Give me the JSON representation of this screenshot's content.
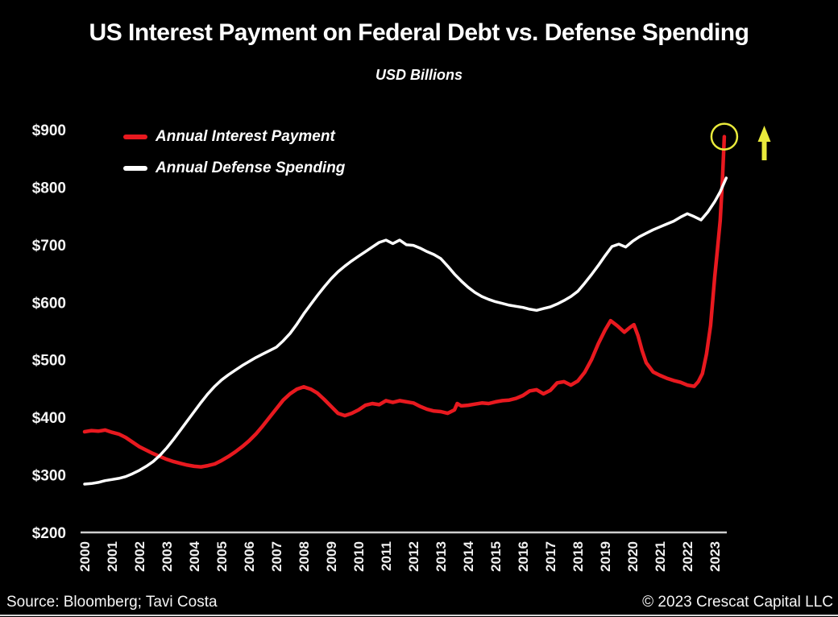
{
  "footer": {
    "source": "Source: Bloomberg; Tavi Costa",
    "copyright": "© 2023 Crescat Capital LLC"
  },
  "chart_data": {
    "type": "line",
    "title": "US Interest Payment on Federal Debt vs. Defense Spending",
    "units_label": "USD Billions",
    "xlabel": "",
    "ylabel": "USD Billions",
    "ylim": [
      200,
      900
    ],
    "x_range": [
      2000,
      2023.45
    ],
    "grid": false,
    "background": "#000000",
    "legend_position": "top-left",
    "axis_color": "#cfcfcf",
    "yticks": [
      {
        "label": "$900",
        "value": 900
      },
      {
        "label": "$800",
        "value": 800
      },
      {
        "label": "$700",
        "value": 700
      },
      {
        "label": "$600",
        "value": 600
      },
      {
        "label": "$500",
        "value": 500
      },
      {
        "label": "$400",
        "value": 400
      },
      {
        "label": "$300",
        "value": 300
      },
      {
        "label": "$200",
        "value": 200
      }
    ],
    "xticks": [
      2000,
      2001,
      2002,
      2003,
      2004,
      2005,
      2006,
      2007,
      2008,
      2009,
      2010,
      2011,
      2012,
      2013,
      2014,
      2015,
      2016,
      2017,
      2018,
      2019,
      2020,
      2021,
      2022,
      2023
    ],
    "series": [
      {
        "name": "Annual Interest Payment",
        "color": "#e8191f",
        "points": [
          [
            2000,
            375
          ],
          [
            2000.25,
            377
          ],
          [
            2000.5,
            376
          ],
          [
            2000.75,
            378
          ],
          [
            2001,
            374
          ],
          [
            2001.25,
            371
          ],
          [
            2001.5,
            365
          ],
          [
            2001.75,
            357
          ],
          [
            2002,
            349
          ],
          [
            2002.25,
            343
          ],
          [
            2002.5,
            337
          ],
          [
            2002.75,
            332
          ],
          [
            2003,
            327
          ],
          [
            2003.25,
            323
          ],
          [
            2003.5,
            320
          ],
          [
            2003.75,
            317
          ],
          [
            2004,
            315
          ],
          [
            2004.25,
            314
          ],
          [
            2004.5,
            316
          ],
          [
            2004.75,
            319
          ],
          [
            2005,
            325
          ],
          [
            2005.25,
            332
          ],
          [
            2005.5,
            340
          ],
          [
            2005.75,
            349
          ],
          [
            2006,
            359
          ],
          [
            2006.25,
            371
          ],
          [
            2006.5,
            385
          ],
          [
            2006.75,
            400
          ],
          [
            2007,
            415
          ],
          [
            2007.25,
            430
          ],
          [
            2007.5,
            441
          ],
          [
            2007.75,
            449
          ],
          [
            2008,
            453
          ],
          [
            2008.25,
            449
          ],
          [
            2008.5,
            442
          ],
          [
            2008.75,
            431
          ],
          [
            2009,
            419
          ],
          [
            2009.25,
            407
          ],
          [
            2009.5,
            403
          ],
          [
            2009.75,
            407
          ],
          [
            2010,
            413
          ],
          [
            2010.25,
            421
          ],
          [
            2010.5,
            424
          ],
          [
            2010.75,
            422
          ],
          [
            2011,
            429
          ],
          [
            2011.25,
            426
          ],
          [
            2011.5,
            429
          ],
          [
            2011.75,
            427
          ],
          [
            2012,
            425
          ],
          [
            2012.25,
            419
          ],
          [
            2012.5,
            414
          ],
          [
            2012.75,
            411
          ],
          [
            2013,
            410
          ],
          [
            2013.25,
            407
          ],
          [
            2013.5,
            413
          ],
          [
            2013.6,
            424
          ],
          [
            2013.75,
            420
          ],
          [
            2014,
            421
          ],
          [
            2014.25,
            423
          ],
          [
            2014.5,
            425
          ],
          [
            2014.75,
            424
          ],
          [
            2015,
            427
          ],
          [
            2015.25,
            429
          ],
          [
            2015.5,
            430
          ],
          [
            2015.75,
            433
          ],
          [
            2016,
            438
          ],
          [
            2016.25,
            446
          ],
          [
            2016.5,
            448
          ],
          [
            2016.75,
            441
          ],
          [
            2017,
            447
          ],
          [
            2017.25,
            460
          ],
          [
            2017.5,
            462
          ],
          [
            2017.75,
            456
          ],
          [
            2018,
            463
          ],
          [
            2018.25,
            478
          ],
          [
            2018.5,
            500
          ],
          [
            2018.75,
            528
          ],
          [
            2019,
            552
          ],
          [
            2019.2,
            568
          ],
          [
            2019.45,
            559
          ],
          [
            2019.7,
            548
          ],
          [
            2019.9,
            556
          ],
          [
            2020.05,
            561
          ],
          [
            2020.2,
            542
          ],
          [
            2020.35,
            516
          ],
          [
            2020.5,
            495
          ],
          [
            2020.75,
            479
          ],
          [
            2021,
            473
          ],
          [
            2021.25,
            468
          ],
          [
            2021.5,
            464
          ],
          [
            2021.75,
            461
          ],
          [
            2022,
            456
          ],
          [
            2022.25,
            454
          ],
          [
            2022.4,
            462
          ],
          [
            2022.55,
            476
          ],
          [
            2022.7,
            510
          ],
          [
            2022.85,
            560
          ],
          [
            2023,
            644
          ],
          [
            2023.1,
            692
          ],
          [
            2023.2,
            742
          ],
          [
            2023.28,
            810
          ],
          [
            2023.35,
            888
          ]
        ]
      },
      {
        "name": "Annual Defense Spending",
        "color": "#ffffff",
        "points": [
          [
            2000,
            284
          ],
          [
            2000.25,
            285
          ],
          [
            2000.5,
            287
          ],
          [
            2000.75,
            290
          ],
          [
            2001,
            292
          ],
          [
            2001.25,
            294
          ],
          [
            2001.5,
            297
          ],
          [
            2001.75,
            302
          ],
          [
            2002,
            308
          ],
          [
            2002.25,
            315
          ],
          [
            2002.5,
            323
          ],
          [
            2002.75,
            334
          ],
          [
            2003,
            347
          ],
          [
            2003.25,
            362
          ],
          [
            2003.5,
            378
          ],
          [
            2003.75,
            394
          ],
          [
            2004,
            410
          ],
          [
            2004.25,
            426
          ],
          [
            2004.5,
            441
          ],
          [
            2004.75,
            454
          ],
          [
            2005,
            465
          ],
          [
            2005.25,
            474
          ],
          [
            2005.5,
            482
          ],
          [
            2005.75,
            490
          ],
          [
            2006,
            497
          ],
          [
            2006.25,
            504
          ],
          [
            2006.5,
            510
          ],
          [
            2006.75,
            516
          ],
          [
            2007,
            522
          ],
          [
            2007.25,
            533
          ],
          [
            2007.5,
            546
          ],
          [
            2007.75,
            562
          ],
          [
            2008,
            580
          ],
          [
            2008.25,
            596
          ],
          [
            2008.5,
            612
          ],
          [
            2008.75,
            627
          ],
          [
            2009,
            641
          ],
          [
            2009.25,
            653
          ],
          [
            2009.5,
            663
          ],
          [
            2009.75,
            672
          ],
          [
            2010,
            680
          ],
          [
            2010.25,
            688
          ],
          [
            2010.5,
            696
          ],
          [
            2010.75,
            704
          ],
          [
            2011,
            708
          ],
          [
            2011.25,
            702
          ],
          [
            2011.5,
            708
          ],
          [
            2011.75,
            700
          ],
          [
            2012,
            699
          ],
          [
            2012.25,
            694
          ],
          [
            2012.5,
            688
          ],
          [
            2012.75,
            683
          ],
          [
            2013,
            676
          ],
          [
            2013.25,
            663
          ],
          [
            2013.5,
            649
          ],
          [
            2013.75,
            637
          ],
          [
            2014,
            626
          ],
          [
            2014.25,
            617
          ],
          [
            2014.5,
            610
          ],
          [
            2014.75,
            605
          ],
          [
            2015,
            601
          ],
          [
            2015.25,
            598
          ],
          [
            2015.5,
            595
          ],
          [
            2015.75,
            593
          ],
          [
            2016,
            591
          ],
          [
            2016.25,
            588
          ],
          [
            2016.5,
            586
          ],
          [
            2016.75,
            589
          ],
          [
            2017,
            592
          ],
          [
            2017.25,
            597
          ],
          [
            2017.5,
            603
          ],
          [
            2017.75,
            610
          ],
          [
            2018,
            619
          ],
          [
            2018.25,
            633
          ],
          [
            2018.5,
            648
          ],
          [
            2018.75,
            664
          ],
          [
            2019,
            681
          ],
          [
            2019.25,
            697
          ],
          [
            2019.5,
            701
          ],
          [
            2019.75,
            696
          ],
          [
            2020,
            706
          ],
          [
            2020.25,
            714
          ],
          [
            2020.5,
            720
          ],
          [
            2020.75,
            726
          ],
          [
            2021,
            731
          ],
          [
            2021.25,
            736
          ],
          [
            2021.5,
            741
          ],
          [
            2021.75,
            748
          ],
          [
            2022,
            754
          ],
          [
            2022.25,
            749
          ],
          [
            2022.5,
            743
          ],
          [
            2022.75,
            757
          ],
          [
            2023,
            775
          ],
          [
            2023.2,
            792
          ],
          [
            2023.42,
            816
          ]
        ]
      }
    ],
    "annotations": [
      {
        "type": "circle",
        "color": "#e9ea3b",
        "year": 2023.35,
        "value": 888,
        "meaning": "highlights latest spike of interest payments to ~$890B"
      },
      {
        "type": "arrow-up",
        "color": "#e9ea3b",
        "meaning": "emphasizes upward surge"
      }
    ]
  }
}
